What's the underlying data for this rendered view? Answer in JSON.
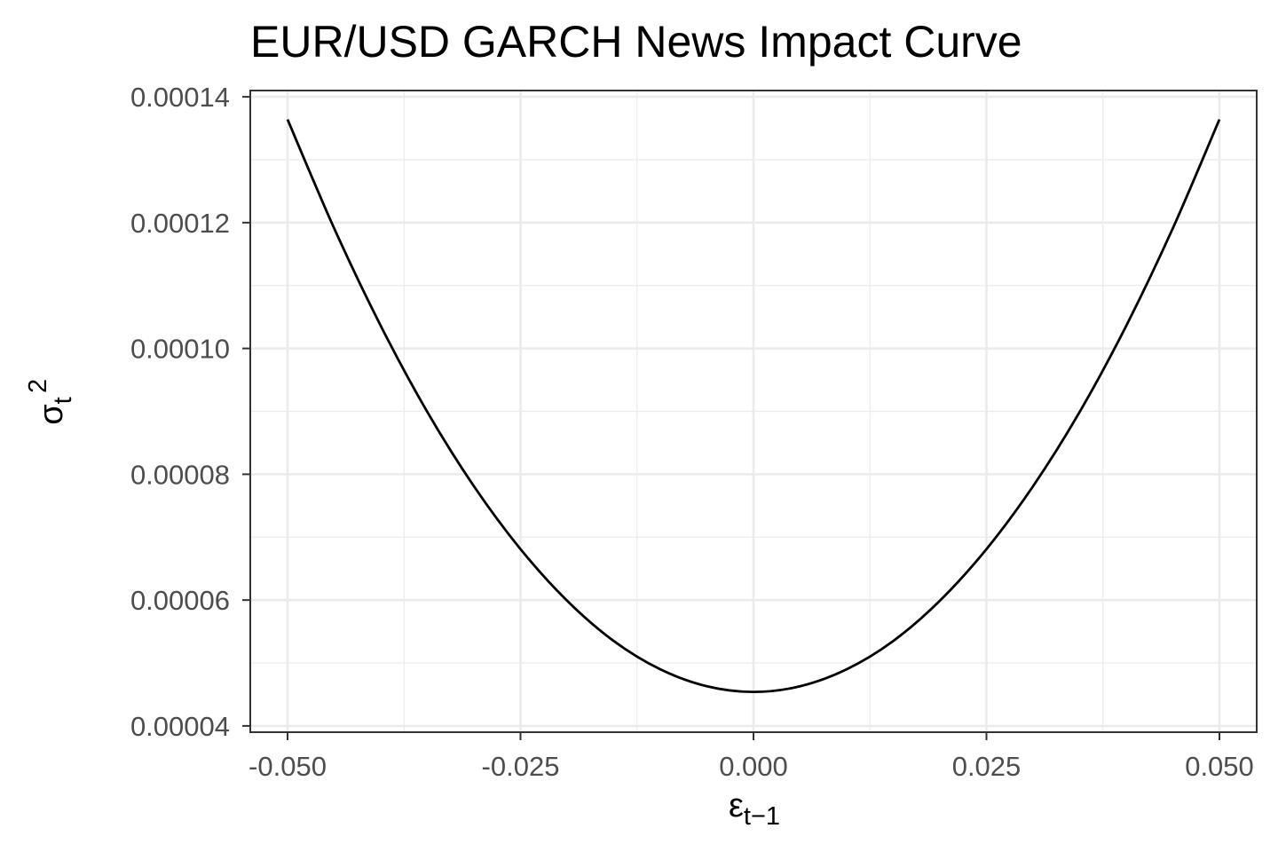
{
  "chart_data": {
    "type": "line",
    "title": "EUR/USD GARCH News Impact Curve",
    "xlabel": {
      "base": "ε",
      "sub": "t−1"
    },
    "ylabel": {
      "base": "σ",
      "sub": "t",
      "sup": "2"
    },
    "xlim": [
      -0.054,
      0.054
    ],
    "ylim": [
      3.9e-05,
      0.000141
    ],
    "x_ticks": [
      -0.05,
      -0.025,
      0.0,
      0.025,
      0.05
    ],
    "x_tick_labels": [
      "-0.050",
      "-0.025",
      "0.000",
      "0.025",
      "0.050"
    ],
    "x_minor_ticks": [
      -0.0375,
      -0.0125,
      0.0125,
      0.0375
    ],
    "y_ticks": [
      4e-05,
      6e-05,
      8e-05,
      0.0001,
      0.00012,
      0.00014
    ],
    "y_tick_labels": [
      "0.00004",
      "0.00006",
      "0.00008",
      "0.00010",
      "0.00012",
      "0.00014"
    ],
    "y_minor_ticks": [
      5e-05,
      7e-05,
      9e-05,
      0.00011,
      0.00013
    ],
    "grid": true,
    "series": [
      {
        "color": "#000000",
        "x": [
          -0.05,
          -0.045,
          -0.04,
          -0.035,
          -0.03,
          -0.025,
          -0.02,
          -0.015,
          -0.01,
          -0.005,
          0.0,
          0.005,
          0.01,
          0.015,
          0.02,
          0.025,
          0.03,
          0.035,
          0.04,
          0.045,
          0.05
        ],
        "y": [
          0.0001364,
          0.0001191,
          0.0001036,
          8.99e-05,
          7.81e-05,
          6.81e-05,
          5.99e-05,
          5.35e-05,
          4.9e-05,
          4.63e-05,
          4.54e-05,
          4.63e-05,
          4.9e-05,
          5.35e-05,
          5.99e-05,
          6.81e-05,
          7.81e-05,
          8.99e-05,
          0.0001036,
          0.0001191,
          0.0001364
        ]
      }
    ]
  }
}
